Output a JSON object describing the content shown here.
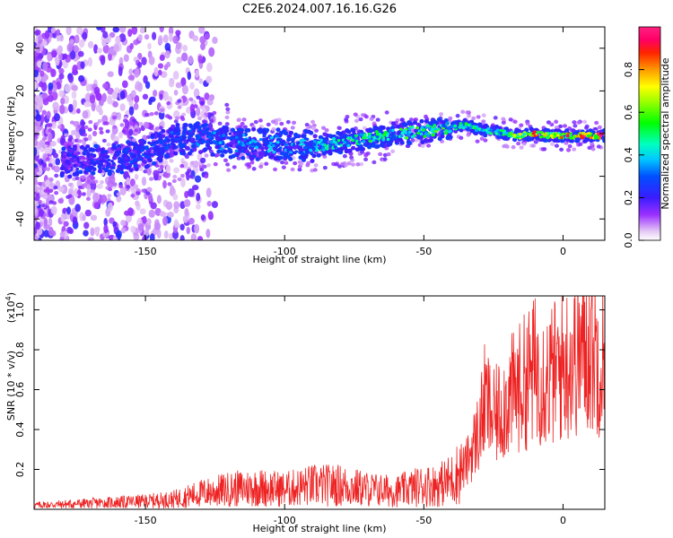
{
  "title": "C2E6.2024.007.16.16.G26",
  "colors": {
    "snr_line": "#ee2222",
    "frame": "#000000"
  },
  "chart_data": [
    {
      "type": "heatmap",
      "xlabel": "Height of straight line (km)",
      "ylabel": "Frequency (Hz)",
      "xlim": [
        -190,
        15
      ],
      "ylim": [
        -50,
        50
      ],
      "x_ticks": [
        -150,
        -100,
        -50,
        0
      ],
      "x_tick_labels": [
        "-150",
        "-100",
        "-50",
        "0"
      ],
      "y_ticks": [
        -40,
        -20,
        0,
        20,
        40
      ],
      "y_tick_labels": [
        "-40",
        "-20",
        "0",
        "20",
        "40"
      ],
      "colorbar": {
        "label": "Normalized spectral amplitude",
        "range": [
          0,
          1
        ],
        "ticks": [
          0.0,
          0.2,
          0.4,
          0.6,
          0.8
        ],
        "tick_labels": [
          "0.0",
          "0.2",
          "0.4",
          "0.6",
          "0.8"
        ]
      },
      "ridge": {
        "x": [
          -190,
          -175,
          -160,
          -150,
          -140,
          -130,
          -120,
          -110,
          -100,
          -90,
          -80,
          -70,
          -60,
          -50,
          -40,
          -35,
          -30,
          -25,
          -20,
          -15,
          -10,
          -5,
          0,
          5,
          10,
          15
        ],
        "freq": [
          -15,
          -13,
          -12,
          -9,
          -3,
          -2,
          -4,
          -5,
          -5,
          -6,
          -4,
          -2,
          0,
          1,
          3,
          4,
          2,
          1,
          0,
          -1,
          0,
          -1,
          -1,
          -1,
          -1,
          -1
        ],
        "amplitude": [
          0.15,
          0.2,
          0.25,
          0.28,
          0.3,
          0.32,
          0.34,
          0.36,
          0.36,
          0.42,
          0.45,
          0.47,
          0.52,
          0.55,
          0.5,
          0.55,
          0.5,
          0.45,
          0.5,
          0.7,
          0.9,
          0.6,
          0.8,
          0.9,
          0.95,
          0.85
        ]
      }
    },
    {
      "type": "line",
      "xlabel": "Height of straight line (km)",
      "ylabel": "SNR (10 * v/v)",
      "y_scale_label": "(x10",
      "y_scale_exp": "4",
      "y_scale_close": ")",
      "xlim": [
        -190,
        15
      ],
      "ylim": [
        0,
        1.07
      ],
      "x_ticks": [
        -150,
        -100,
        -50,
        0
      ],
      "x_tick_labels": [
        "-150",
        "-100",
        "-50",
        "0"
      ],
      "y_ticks": [
        0.2,
        0.4,
        0.6,
        0.8,
        1.0
      ],
      "y_tick_labels": [
        "0.2",
        "0.4",
        "0.6",
        "0.8",
        "1.0"
      ],
      "series": [
        {
          "x": [
            -190,
            -170,
            -150,
            -140,
            -130,
            -120,
            -110,
            -100,
            -90,
            -80,
            -70,
            -60,
            -50,
            -45,
            -40,
            -35,
            -30,
            -28,
            -25,
            -20,
            -15,
            -10,
            -5,
            0,
            5,
            10,
            15
          ],
          "y": [
            0.02,
            0.03,
            0.04,
            0.05,
            0.08,
            0.1,
            0.11,
            0.1,
            0.12,
            0.12,
            0.1,
            0.09,
            0.12,
            0.12,
            0.15,
            0.22,
            0.4,
            0.55,
            0.45,
            0.55,
            0.62,
            0.7,
            0.66,
            0.72,
            0.78,
            0.82,
            0.75
          ]
        }
      ]
    }
  ]
}
